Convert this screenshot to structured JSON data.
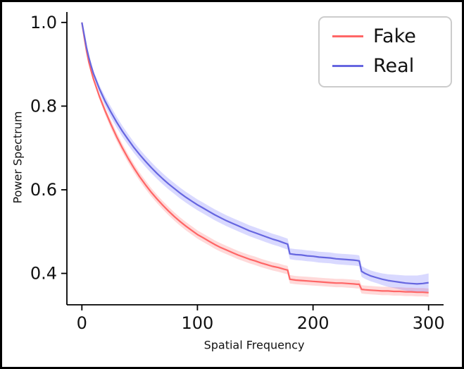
{
  "chart_data": {
    "type": "line",
    "title": "",
    "xlabel": "Spatial Frequency",
    "ylabel": "Power Spectrum",
    "xlim": [
      -13,
      313
    ],
    "ylim": [
      0.325,
      1.025
    ],
    "x_ticks": [
      0,
      100,
      200,
      300
    ],
    "x_tick_labels": [
      "0",
      "100",
      "200",
      "300"
    ],
    "y_ticks": [
      0.4,
      0.6,
      0.8,
      1.0
    ],
    "y_tick_labels": [
      "0.4",
      "0.6",
      "0.8",
      "1.0"
    ],
    "grid": false,
    "legend": {
      "position": "upper right",
      "border_color": "#cccccc"
    },
    "x": [
      0,
      2,
      4,
      6,
      8,
      10,
      15,
      20,
      25,
      30,
      35,
      40,
      45,
      50,
      55,
      60,
      65,
      70,
      75,
      80,
      85,
      90,
      95,
      100,
      105,
      110,
      115,
      120,
      125,
      130,
      135,
      140,
      145,
      150,
      155,
      160,
      165,
      170,
      175,
      178,
      180,
      185,
      190,
      195,
      200,
      205,
      210,
      215,
      220,
      225,
      230,
      235,
      238,
      240,
      242,
      245,
      250,
      255,
      260,
      265,
      270,
      275,
      280,
      285,
      290,
      295,
      300
    ],
    "series": [
      {
        "name": "Fake",
        "color": "#ff6666",
        "band_color": "rgba(255,80,80,0.22)",
        "band_halfwidth": 0.01,
        "flare_from": null,
        "flare_factor": 0,
        "y": [
          1.0,
          0.965,
          0.932,
          0.905,
          0.884,
          0.865,
          0.824,
          0.789,
          0.757,
          0.727,
          0.7,
          0.675,
          0.652,
          0.631,
          0.612,
          0.594,
          0.578,
          0.563,
          0.549,
          0.536,
          0.524,
          0.513,
          0.503,
          0.493,
          0.485,
          0.477,
          0.469,
          0.462,
          0.456,
          0.45,
          0.444,
          0.439,
          0.434,
          0.43,
          0.425,
          0.421,
          0.417,
          0.414,
          0.41,
          0.408,
          0.386,
          0.384,
          0.383,
          0.382,
          0.381,
          0.38,
          0.379,
          0.378,
          0.377,
          0.377,
          0.376,
          0.375,
          0.374,
          0.374,
          0.362,
          0.361,
          0.36,
          0.359,
          0.358,
          0.358,
          0.357,
          0.357,
          0.356,
          0.356,
          0.355,
          0.355,
          0.354
        ]
      },
      {
        "name": "Real",
        "color": "#6666e0",
        "band_color": "rgba(80,80,255,0.22)",
        "band_halfwidth": 0.013,
        "flare_from": 255,
        "flare_factor": 0.9,
        "y": [
          1.0,
          0.97,
          0.94,
          0.916,
          0.896,
          0.878,
          0.842,
          0.812,
          0.786,
          0.762,
          0.74,
          0.72,
          0.701,
          0.684,
          0.668,
          0.653,
          0.639,
          0.626,
          0.614,
          0.603,
          0.592,
          0.582,
          0.573,
          0.564,
          0.556,
          0.548,
          0.54,
          0.533,
          0.526,
          0.52,
          0.514,
          0.508,
          0.502,
          0.497,
          0.492,
          0.487,
          0.482,
          0.478,
          0.473,
          0.47,
          0.447,
          0.445,
          0.444,
          0.442,
          0.441,
          0.439,
          0.438,
          0.437,
          0.435,
          0.434,
          0.433,
          0.432,
          0.431,
          0.43,
          0.405,
          0.4,
          0.394,
          0.39,
          0.386,
          0.383,
          0.381,
          0.379,
          0.377,
          0.376,
          0.375,
          0.376,
          0.378
        ]
      }
    ]
  }
}
